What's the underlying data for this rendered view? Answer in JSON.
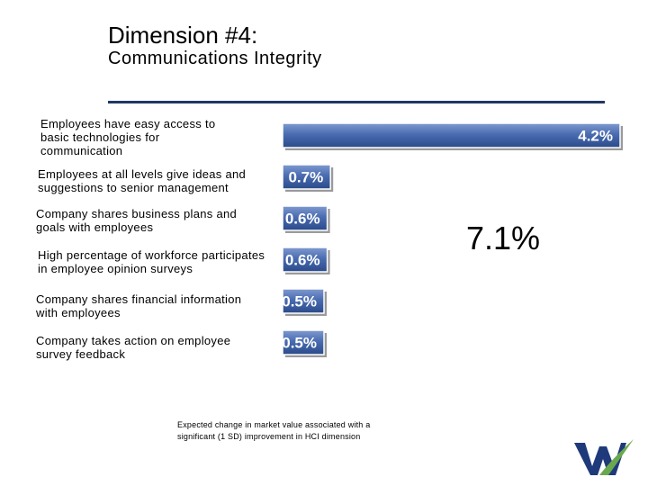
{
  "slide": {
    "title": "Dimension #4:",
    "subtitle": "Communications Integrity",
    "footnote": "Expected change in market value associated with a significant (1 SD) improvement in HCI dimension"
  },
  "chart_data": {
    "type": "bar",
    "orientation": "horizontal",
    "categories": [
      "Employees have easy access to basic technologies for communication",
      "Employees at all levels give ideas and suggestions to senior management",
      "Company shares business plans and goals with employees",
      "High percentage of workforce participates in employee opinion surveys",
      "Company shares financial information with employees",
      "Company takes action on employee survey feedback"
    ],
    "values": [
      4.2,
      0.7,
      0.6,
      0.6,
      0.5,
      0.5
    ],
    "value_labels": [
      "4.2%",
      "0.7%",
      "0.6%",
      "0.6%",
      "0.5%",
      "0.5%"
    ],
    "unit": "%",
    "total_label": "7.1%",
    "colors": {
      "bar": "#4a6cb0",
      "bar_light": "#7f9ad0",
      "bar_dark": "#2a4a8a",
      "label_text": "#ffffff",
      "shadow": "#9a9a9a"
    }
  }
}
